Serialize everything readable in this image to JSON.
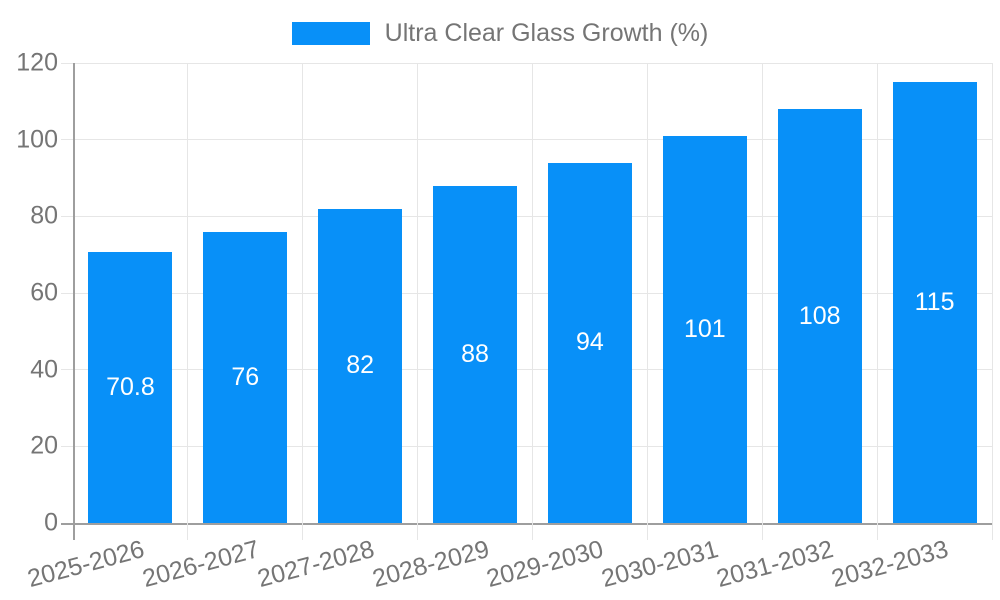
{
  "chart_data": {
    "type": "bar",
    "legend_label": "Ultra Clear Glass Growth (%)",
    "categories": [
      "2025-2026",
      "2026-2027",
      "2027-2028",
      "2028-2029",
      "2029-2030",
      "2030-2031",
      "2031-2032",
      "2032-2033"
    ],
    "values": [
      70.8,
      76,
      82,
      88,
      94,
      101,
      108,
      115
    ],
    "value_labels": [
      "70.8",
      "76",
      "82",
      "88",
      "94",
      "101",
      "108",
      "115"
    ],
    "title": "",
    "xlabel": "",
    "ylabel": "",
    "ylim": [
      0,
      120
    ],
    "yticks": [
      0,
      20,
      40,
      60,
      80,
      100,
      120
    ],
    "grid": true,
    "legend_position": "top-center",
    "value_label_position": "inside-center",
    "x_tick_rotation_deg": -15,
    "colors": {
      "bar": "#0890F8",
      "tick_text": "#757575",
      "gridline": "#E6E6E6",
      "axis_line": "#9E9E9E",
      "value_label": "#FFFFFF",
      "background": "#FFFFFF"
    }
  }
}
